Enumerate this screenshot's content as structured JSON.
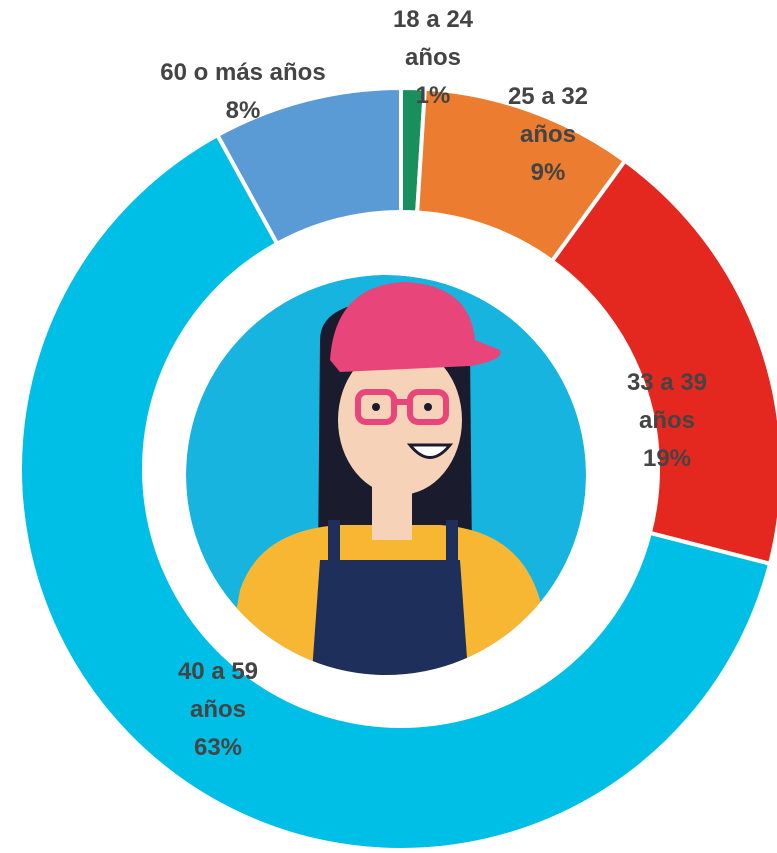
{
  "chart_data": {
    "type": "donut",
    "categories": [
      "18 a 24 años",
      "25 a 32 años",
      "33 a 39 años",
      "40 a 59 años",
      "60 o más años"
    ],
    "values": [
      1,
      9,
      19,
      63,
      8
    ],
    "value_labels": [
      "1%",
      "9%",
      "19%",
      "63%",
      "8%"
    ],
    "colors": [
      "#1a8f5e",
      "#ec7c30",
      "#e5281f",
      "#00bfe6",
      "#5b9bd5"
    ]
  }
}
